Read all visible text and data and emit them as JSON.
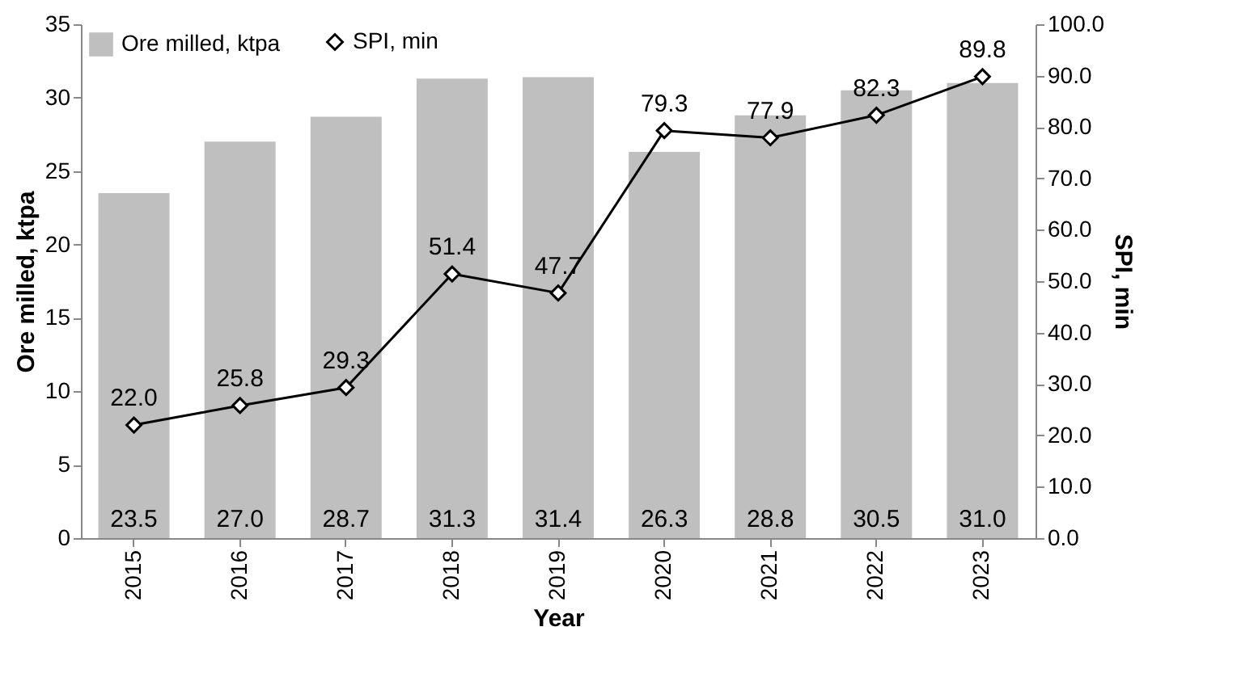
{
  "chart_data": {
    "type": "bar",
    "xlabel": "Year",
    "ylabel": "Ore milled, ktpa",
    "y2label": "SPI, min",
    "categories": [
      "2015",
      "2016",
      "2017",
      "2018",
      "2019",
      "2020",
      "2021",
      "2022",
      "2023"
    ],
    "series": [
      {
        "name": "Ore milled, ktpa",
        "color": "#bfbfbf",
        "values": [
          23.5,
          27.0,
          28.7,
          31.3,
          31.4,
          26.3,
          28.8,
          30.5,
          31.0
        ],
        "value_labels": [
          "23.5",
          "27.0",
          "28.7",
          "31.3",
          "31.4",
          "26.3",
          "28.8",
          "30.5",
          "31.0"
        ]
      },
      {
        "name": "SPI, min",
        "type": "line",
        "axis": "y2",
        "color": "#000000",
        "values": [
          22.0,
          25.8,
          29.3,
          51.4,
          47.7,
          79.3,
          77.9,
          82.3,
          89.8
        ],
        "value_labels": [
          "22.0",
          "25.8",
          "29.3",
          "51.4",
          "47.7",
          "79.3",
          "77.9",
          "82.3",
          "89.8"
        ]
      }
    ],
    "ylim": [
      0,
      35
    ],
    "yticks": [
      0,
      5,
      10,
      15,
      20,
      25,
      30,
      35
    ],
    "y2lim": [
      0,
      100
    ],
    "y2ticks": [
      {
        "value": 0,
        "label": "0.0"
      },
      {
        "value": 10,
        "label": "10.0"
      },
      {
        "value": 20,
        "label": "20.0"
      },
      {
        "value": 30,
        "label": "30.0"
      },
      {
        "value": 40,
        "label": "40.0"
      },
      {
        "value": 50,
        "label": "50.0"
      },
      {
        "value": 60,
        "label": "60.0"
      },
      {
        "value": 70,
        "label": "70.0"
      },
      {
        "value": 80,
        "label": "80.0"
      },
      {
        "value": 90,
        "label": "90.0"
      },
      {
        "value": 100,
        "label": "100.0"
      }
    ],
    "legend": "top left",
    "marker": "diamond",
    "line_style": "solid",
    "grid": false
  }
}
